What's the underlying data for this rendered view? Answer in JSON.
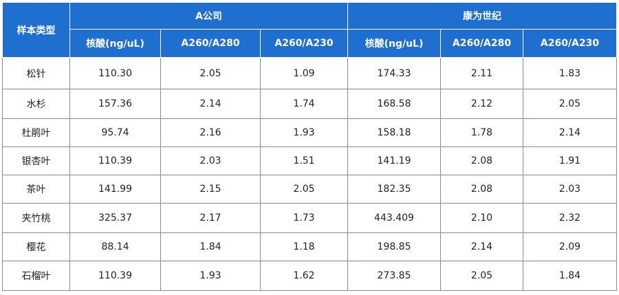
{
  "header": {
    "sample_type": "样本类型",
    "groups": [
      "A公司",
      "康为世纪"
    ],
    "columns": [
      "核酸(ng/uL)",
      "A260/A280",
      "A260/A230",
      "核酸(ng/uL)",
      "A260/A280",
      "A260/A230"
    ]
  },
  "rows": [
    {
      "sample": "松针",
      "cells": [
        "110.30",
        "2.05",
        "1.09",
        "174.33",
        "2.11",
        "1.83"
      ]
    },
    {
      "sample": "水杉",
      "cells": [
        "157.36",
        "2.14",
        "1.74",
        "168.58",
        "2.12",
        "2.05"
      ]
    },
    {
      "sample": "杜鹃叶",
      "cells": [
        "95.74",
        "2.16",
        "1.93",
        "158.18",
        "1.78",
        "2.14"
      ]
    },
    {
      "sample": "银杏叶",
      "cells": [
        "110.39",
        "2.03",
        "1.51",
        "141.19",
        "2.08",
        "1.91"
      ]
    },
    {
      "sample": "茶叶",
      "cells": [
        "141.99",
        "2.15",
        "2.05",
        "182.35",
        "2.08",
        "2.03"
      ]
    },
    {
      "sample": "夹竹桃",
      "cells": [
        "325.37",
        "2.17",
        "1.73",
        "443.409",
        "2.10",
        "2.32"
      ]
    },
    {
      "sample": "樱花",
      "cells": [
        "88.14",
        "1.84",
        "1.18",
        "198.85",
        "2.14",
        "2.09"
      ]
    },
    {
      "sample": "石榴叶",
      "cells": [
        "110.39",
        "1.93",
        "1.62",
        "273.85",
        "2.05",
        "1.84"
      ]
    }
  ],
  "colors": {
    "header_bg": "#1f6fd1",
    "header_text": "#ffffff",
    "border": "#8a8a8a"
  }
}
